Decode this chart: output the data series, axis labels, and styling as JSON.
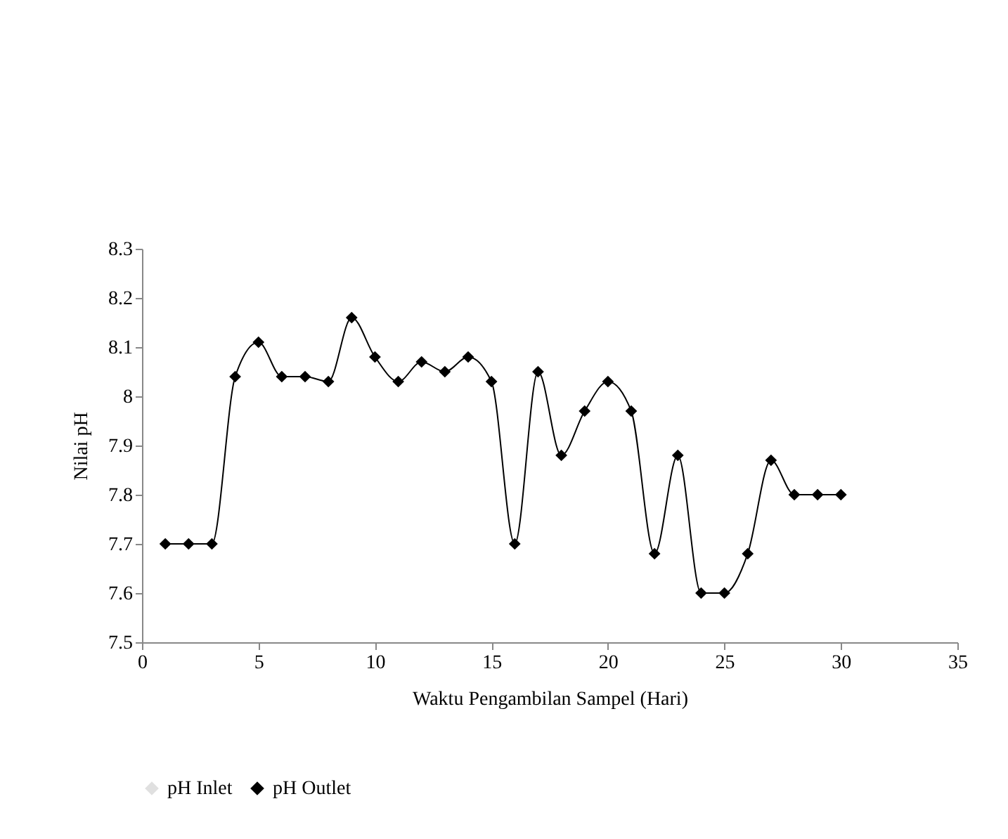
{
  "chart_data": {
    "type": "line",
    "xlabel": "Waktu Pengambilan Sampel  (Hari)",
    "ylabel": "Nilai pH",
    "x": [
      1,
      2,
      3,
      4,
      5,
      6,
      7,
      8,
      9,
      10,
      11,
      12,
      13,
      14,
      15,
      16,
      17,
      18,
      19,
      20,
      21,
      22,
      23,
      24,
      25,
      26,
      27,
      28,
      29,
      30
    ],
    "series": [
      {
        "name": "pH Inlet",
        "color": "#e0e0e0",
        "values": [
          null,
          null,
          null,
          null,
          null,
          null,
          null,
          null,
          null,
          null,
          null,
          null,
          null,
          null,
          null,
          null,
          null,
          null,
          null,
          null,
          null,
          null,
          null,
          null,
          null,
          null,
          null,
          null,
          null,
          null
        ]
      },
      {
        "name": "pH Outlet",
        "color": "#000000",
        "values": [
          7.7,
          7.7,
          7.7,
          8.04,
          8.11,
          8.04,
          8.04,
          8.03,
          8.16,
          8.08,
          8.03,
          8.07,
          8.05,
          8.08,
          8.03,
          7.7,
          8.05,
          7.88,
          7.97,
          8.03,
          7.97,
          7.68,
          7.88,
          7.6,
          7.6,
          7.68,
          7.87,
          7.8,
          7.8,
          7.8
        ]
      }
    ],
    "xlim": [
      0,
      35
    ],
    "xticks": [
      0,
      5,
      10,
      15,
      20,
      25,
      30,
      35
    ],
    "ylim": [
      7.5,
      8.3
    ],
    "yticks": [
      7.5,
      7.6,
      7.7,
      7.8,
      7.9,
      8,
      8.1,
      8.2,
      8.3
    ],
    "grid": false,
    "legend": "bottom",
    "marker": "diamond",
    "line_style": "solid"
  }
}
